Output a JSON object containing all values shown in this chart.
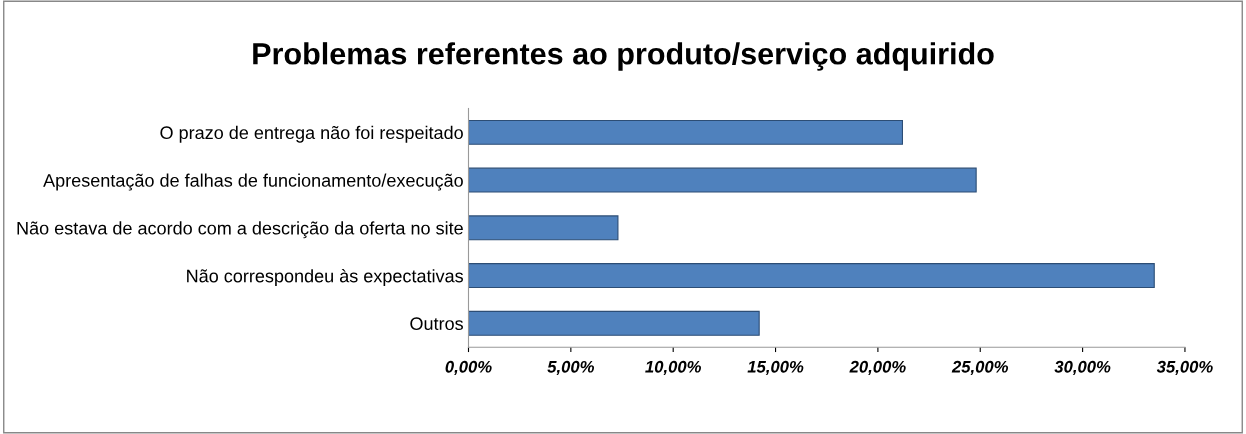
{
  "chart_data": {
    "type": "bar",
    "orientation": "horizontal",
    "title": "Problemas referentes ao produto/serviço adquirido",
    "categories": [
      "O prazo de entrega não foi respeitado",
      "Apresentação de falhas de funcionamento/execução",
      "Não estava de acordo com a descrição da oferta no site",
      "Não correspondeu às expectativas",
      "Outros"
    ],
    "values": [
      21.2,
      24.8,
      7.3,
      33.5,
      14.2
    ],
    "color": "#4f81bd",
    "xlim": [
      0,
      35
    ],
    "xticks": [
      {
        "value": 0,
        "label": "0,00%"
      },
      {
        "value": 5,
        "label": "5,00%"
      },
      {
        "value": 10,
        "label": "10,00%"
      },
      {
        "value": 15,
        "label": "15,00%"
      },
      {
        "value": 20,
        "label": "20,00%"
      },
      {
        "value": 25,
        "label": "25,00%"
      },
      {
        "value": 30,
        "label": "30,00%"
      },
      {
        "value": 35,
        "label": "35,00%"
      }
    ],
    "grid": false,
    "legend": false
  }
}
